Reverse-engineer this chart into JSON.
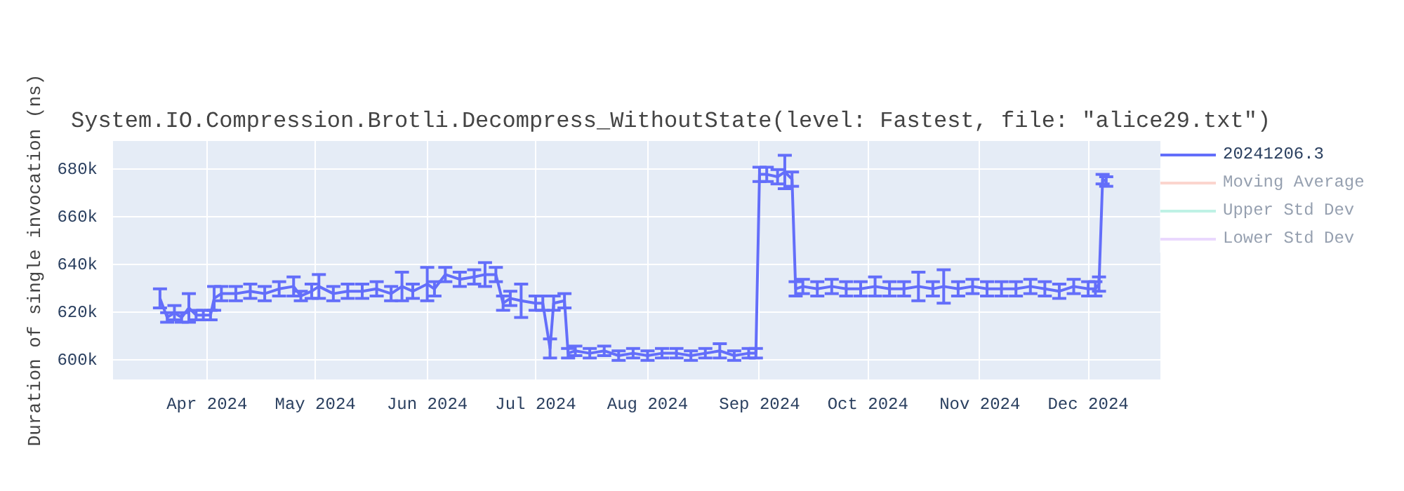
{
  "chart_data": {
    "type": "line",
    "title": "System.IO.Compression.Brotli.Decompress_WithoutState(level: Fastest, file: \"alice29.txt\")",
    "ylabel": "Duration of single invocation (ns)",
    "xlim": [
      "2024-03-06",
      "2024-12-21"
    ],
    "xticks": [
      {
        "value": "2024-04-01",
        "label": "Apr 2024"
      },
      {
        "value": "2024-05-01",
        "label": "May 2024"
      },
      {
        "value": "2024-06-01",
        "label": "Jun 2024"
      },
      {
        "value": "2024-07-01",
        "label": "Jul 2024"
      },
      {
        "value": "2024-08-01",
        "label": "Aug 2024"
      },
      {
        "value": "2024-09-01",
        "label": "Sep 2024"
      },
      {
        "value": "2024-10-01",
        "label": "Oct 2024"
      },
      {
        "value": "2024-11-01",
        "label": "Nov 2024"
      },
      {
        "value": "2024-12-01",
        "label": "Dec 2024"
      }
    ],
    "ylim": [
      592000,
      692000
    ],
    "yticks": [
      {
        "value": 600000,
        "label": "600k"
      },
      {
        "value": 620000,
        "label": "620k"
      },
      {
        "value": 640000,
        "label": "640k"
      },
      {
        "value": 660000,
        "label": "660k"
      },
      {
        "value": 680000,
        "label": "680k"
      }
    ],
    "grid": true,
    "legend": "right",
    "marker": "none",
    "line_style": "solid",
    "x": [
      "2024-03-19",
      "2024-03-21",
      "2024-03-23",
      "2024-03-25",
      "2024-03-27",
      "2024-03-29",
      "2024-03-31",
      "2024-04-02",
      "2024-04-03",
      "2024-04-05",
      "2024-04-09",
      "2024-04-13",
      "2024-04-17",
      "2024-04-21",
      "2024-04-25",
      "2024-04-27",
      "2024-04-30",
      "2024-05-02",
      "2024-05-06",
      "2024-05-10",
      "2024-05-14",
      "2024-05-18",
      "2024-05-22",
      "2024-05-25",
      "2024-05-28",
      "2024-06-01",
      "2024-06-03",
      "2024-06-06",
      "2024-06-10",
      "2024-06-14",
      "2024-06-17",
      "2024-06-20",
      "2024-06-22",
      "2024-06-24",
      "2024-06-27",
      "2024-07-01",
      "2024-07-03",
      "2024-07-05",
      "2024-07-06",
      "2024-07-09",
      "2024-07-10",
      "2024-07-12",
      "2024-07-16",
      "2024-07-20",
      "2024-07-24",
      "2024-07-28",
      "2024-08-01",
      "2024-08-05",
      "2024-08-09",
      "2024-08-13",
      "2024-08-17",
      "2024-08-21",
      "2024-08-25",
      "2024-08-29",
      "2024-08-31",
      "2024-09-01",
      "2024-09-03",
      "2024-09-06",
      "2024-09-08",
      "2024-09-10",
      "2024-09-11",
      "2024-09-13",
      "2024-09-17",
      "2024-09-21",
      "2024-09-25",
      "2024-09-29",
      "2024-10-03",
      "2024-10-07",
      "2024-10-11",
      "2024-10-15",
      "2024-10-19",
      "2024-10-22",
      "2024-10-26",
      "2024-10-30",
      "2024-11-03",
      "2024-11-07",
      "2024-11-11",
      "2024-11-15",
      "2024-11-19",
      "2024-11-23",
      "2024-11-27",
      "2024-12-01",
      "2024-12-03",
      "2024-12-04",
      "2024-12-05",
      "2024-12-06"
    ],
    "series": [
      {
        "name": "20241206.3",
        "color": "#636efa",
        "values": [
          626000,
          618000,
          620000,
          618000,
          622000,
          619000,
          619000,
          619000,
          626000,
          628000,
          628000,
          629000,
          628000,
          630000,
          631000,
          627000,
          629000,
          631000,
          628000,
          629000,
          629000,
          630000,
          628000,
          631000,
          629000,
          632000,
          630000,
          636000,
          634000,
          635000,
          636000,
          636000,
          624000,
          626000,
          625000,
          624000,
          624000,
          605000,
          624000,
          625000,
          603000,
          604000,
          603000,
          604000,
          602000,
          603000,
          602000,
          603000,
          603000,
          602000,
          603000,
          604000,
          602000,
          603000,
          603000,
          678000,
          678000,
          677000,
          679000,
          676000,
          630000,
          631000,
          630000,
          631000,
          630000,
          630000,
          631000,
          630000,
          630000,
          631000,
          630000,
          631000,
          630000,
          631000,
          630000,
          630000,
          630000,
          631000,
          630000,
          629000,
          631000,
          630000,
          630000,
          632000,
          676000,
          675000
        ],
        "errors": [
          4000,
          2000,
          3000,
          2000,
          6000,
          2000,
          2000,
          2000,
          5000,
          3000,
          3000,
          3000,
          3000,
          3000,
          4000,
          2000,
          3000,
          5000,
          3000,
          3000,
          3000,
          3000,
          3000,
          6000,
          3000,
          7000,
          3000,
          3000,
          3000,
          3000,
          5000,
          3000,
          3000,
          3000,
          7000,
          3000,
          3000,
          4000,
          3000,
          3000,
          2000,
          2000,
          2000,
          2000,
          2000,
          2000,
          2000,
          2000,
          2000,
          2000,
          2000,
          3000,
          2000,
          2000,
          2000,
          3000,
          3000,
          3000,
          7000,
          3000,
          3000,
          3000,
          3000,
          3000,
          3000,
          3000,
          4000,
          3000,
          3000,
          6000,
          3000,
          7000,
          3000,
          3000,
          3000,
          3000,
          3000,
          3000,
          3000,
          3000,
          3000,
          3000,
          3000,
          3000,
          2000,
          2000
        ]
      },
      {
        "name": "Moving Average",
        "color": "#ef553b",
        "values": [
          null,
          null,
          null,
          null,
          null,
          null,
          null,
          null,
          null,
          null,
          null,
          null,
          null,
          null,
          null,
          null,
          null,
          null,
          null,
          null,
          null,
          null,
          null,
          null,
          null,
          null,
          null,
          null,
          null,
          null,
          null,
          null,
          null,
          null,
          null,
          null,
          null,
          null,
          null,
          null,
          null,
          null,
          null,
          null,
          null,
          null,
          null,
          null,
          null,
          null,
          null,
          null,
          null,
          null,
          null,
          null,
          null,
          null,
          null,
          null,
          null,
          null,
          null,
          null,
          null,
          null,
          null,
          null,
          null,
          null,
          null,
          null,
          null,
          null,
          null,
          null,
          null,
          null,
          null,
          null,
          null,
          null,
          null,
          null,
          null,
          null
        ]
      },
      {
        "name": "Upper Std Dev",
        "color": "#00cc96",
        "values": [
          null,
          null,
          null,
          null,
          null,
          null,
          null,
          null,
          null,
          null,
          null,
          null,
          null,
          null,
          null,
          null,
          null,
          null,
          null,
          null,
          null,
          null,
          null,
          null,
          null,
          null,
          null,
          null,
          null,
          null,
          null,
          null,
          null,
          null,
          null,
          null,
          null,
          null,
          null,
          null,
          null,
          null,
          null,
          null,
          null,
          null,
          null,
          null,
          null,
          null,
          null,
          null,
          null,
          null,
          null,
          null,
          null,
          null,
          null,
          null,
          null,
          null,
          null,
          null,
          null,
          null,
          null,
          null,
          null,
          null,
          null,
          null,
          null,
          null,
          null,
          null,
          null,
          null,
          null,
          null,
          null,
          null,
          null,
          null,
          null,
          null
        ]
      },
      {
        "name": "Lower Std Dev",
        "color": "#ab63fa",
        "values": [
          null,
          null,
          null,
          null,
          null,
          null,
          null,
          null,
          null,
          null,
          null,
          null,
          null,
          null,
          null,
          null,
          null,
          null,
          null,
          null,
          null,
          null,
          null,
          null,
          null,
          null,
          null,
          null,
          null,
          null,
          null,
          null,
          null,
          null,
          null,
          null,
          null,
          null,
          null,
          null,
          null,
          null,
          null,
          null,
          null,
          null,
          null,
          null,
          null,
          null,
          null,
          null,
          null,
          null,
          null,
          null,
          null,
          null,
          null,
          null,
          null,
          null,
          null,
          null,
          null,
          null,
          null,
          null,
          null,
          null,
          null,
          null,
          null,
          null,
          null,
          null,
          null,
          null,
          null,
          null,
          null,
          null,
          null,
          null,
          null,
          null
        ]
      }
    ]
  }
}
